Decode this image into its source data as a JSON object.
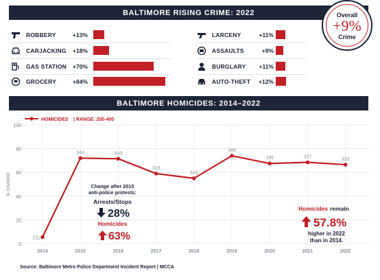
{
  "panel_top": {
    "title": "BALTIMORE RISING CRIME: 2022",
    "left_items": [
      {
        "label": "ROBBERY",
        "pct": "+13%",
        "value": 13,
        "icon": "pistol-icon"
      },
      {
        "label": "CARJACKING",
        "pct": "+18%",
        "value": 18,
        "icon": "car-icon"
      },
      {
        "label": "GAS STATION",
        "pct": "+70%",
        "value": 70,
        "icon": "gas-pump-icon"
      },
      {
        "label": "GROCERY",
        "pct": "+84%",
        "value": 84,
        "icon": "shopping-cart-icon"
      }
    ],
    "right_items": [
      {
        "label": "LARCENY",
        "pct": "+11%",
        "value": 11,
        "icon": "gun-icon"
      },
      {
        "label": "ASSAULTS",
        "pct": "+9%",
        "value": 9,
        "icon": "fist-icon"
      },
      {
        "label": "BURGLARY",
        "pct": "+11%",
        "value": 11,
        "icon": "burglar-icon"
      },
      {
        "label": "AUTO-THEFT",
        "pct": "+12%",
        "value": 12,
        "icon": "car-theft-icon"
      }
    ],
    "overall": {
      "title": "Overall",
      "value": "+9%",
      "subtitle": "Crime"
    }
  },
  "panel_mid": {
    "title": "BALTIMORE HOMICIDES: 2014–2022"
  },
  "annotations": {
    "protest_title": "Change after 2015 anti-police protests:",
    "arrests_label": "Arrests/Stops",
    "arrests_value": "28%",
    "homicides_label": "Homicides",
    "homicides_value": "63%",
    "remain_label": "Homicides",
    "remain_suffix": "remain",
    "remain_value": "57.8%",
    "remain_note_1": "higher in 2022",
    "remain_note_2": "than in 2014."
  },
  "chart_data": {
    "type": "line",
    "title": "BALTIMORE HOMICIDES: 2014–2022",
    "legend": [
      {
        "text": "HOMICIDES",
        "color": "#c22027"
      },
      {
        "text": "RANGE: 200-400",
        "color": "#c22027"
      }
    ],
    "legend_position": "top-left",
    "ylabel": "% CHANGE",
    "yticks": [
      0,
      20,
      40,
      60,
      80,
      100
    ],
    "ylim": [
      0,
      100
    ],
    "x": [
      "2014",
      "2015",
      "2016",
      "2017",
      "2018",
      "2019",
      "2020",
      "2021",
      "2022"
    ],
    "series": [
      {
        "name": "HOMICIDES",
        "color": "#c22027",
        "values": [
          5.5,
          72,
          71.5,
          59,
          55,
          74,
          67.5,
          68.5,
          66.5
        ],
        "labels": [
          "211",
          "344",
          "343",
          "318",
          "310",
          "348",
          "335",
          "337",
          "333"
        ]
      }
    ],
    "grid": true
  },
  "footer": "Source: Baltimore Metro Police Department Incident Report | MCCA"
}
